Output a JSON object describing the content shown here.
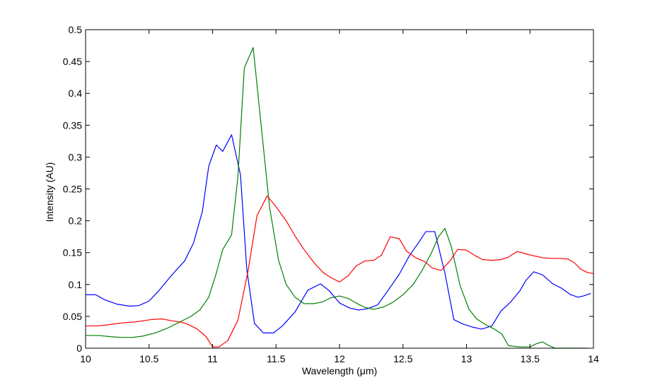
{
  "chart_data": {
    "type": "line",
    "xlabel": "Wavelength (μm)",
    "ylabel": "Intensity (AU)",
    "xlim": [
      10,
      14
    ],
    "ylim": [
      0,
      0.5
    ],
    "xticks": [
      10,
      10.5,
      11,
      11.5,
      12,
      12.5,
      13,
      13.5,
      14
    ],
    "yticks": [
      0,
      0.05,
      0.1,
      0.15,
      0.2,
      0.25,
      0.3,
      0.35,
      0.4,
      0.45,
      0.5
    ],
    "xtick_labels": [
      "10",
      "10.5",
      "11",
      "11.5",
      "12",
      "12.5",
      "13",
      "13.5",
      "14"
    ],
    "ytick_labels": [
      "0",
      "0.05",
      "0.1",
      "0.15",
      "0.2",
      "0.25",
      "0.3",
      "0.35",
      "0.4",
      "0.45",
      "0.5"
    ],
    "grid": false,
    "series": [
      {
        "color": "#0000ff",
        "points": [
          [
            10.0,
            0.084
          ],
          [
            10.08,
            0.084
          ],
          [
            10.15,
            0.076
          ],
          [
            10.25,
            0.069
          ],
          [
            10.35,
            0.066
          ],
          [
            10.42,
            0.067
          ],
          [
            10.5,
            0.074
          ],
          [
            10.58,
            0.091
          ],
          [
            10.65,
            0.108
          ],
          [
            10.72,
            0.124
          ],
          [
            10.78,
            0.137
          ],
          [
            10.85,
            0.165
          ],
          [
            10.92,
            0.215
          ],
          [
            10.97,
            0.286
          ],
          [
            11.03,
            0.319
          ],
          [
            11.08,
            0.309
          ],
          [
            11.15,
            0.335
          ],
          [
            11.22,
            0.272
          ],
          [
            11.27,
            0.123
          ],
          [
            11.33,
            0.039
          ],
          [
            11.4,
            0.024
          ],
          [
            11.48,
            0.024
          ],
          [
            11.55,
            0.035
          ],
          [
            11.65,
            0.057
          ],
          [
            11.75,
            0.091
          ],
          [
            11.85,
            0.101
          ],
          [
            11.92,
            0.09
          ],
          [
            12.0,
            0.071
          ],
          [
            12.08,
            0.063
          ],
          [
            12.15,
            0.06
          ],
          [
            12.22,
            0.062
          ],
          [
            12.3,
            0.068
          ],
          [
            12.38,
            0.09
          ],
          [
            12.47,
            0.116
          ],
          [
            12.55,
            0.145
          ],
          [
            12.62,
            0.165
          ],
          [
            12.68,
            0.183
          ],
          [
            12.75,
            0.183
          ],
          [
            12.83,
            0.118
          ],
          [
            12.9,
            0.045
          ],
          [
            12.97,
            0.038
          ],
          [
            13.05,
            0.033
          ],
          [
            13.12,
            0.03
          ],
          [
            13.2,
            0.035
          ],
          [
            13.27,
            0.058
          ],
          [
            13.35,
            0.073
          ],
          [
            13.42,
            0.09
          ],
          [
            13.47,
            0.107
          ],
          [
            13.53,
            0.12
          ],
          [
            13.6,
            0.115
          ],
          [
            13.68,
            0.101
          ],
          [
            13.75,
            0.094
          ],
          [
            13.82,
            0.084
          ],
          [
            13.88,
            0.08
          ],
          [
            13.92,
            0.082
          ],
          [
            13.98,
            0.086
          ]
        ]
      },
      {
        "color": "#008000",
        "points": [
          [
            10.0,
            0.02
          ],
          [
            10.1,
            0.02
          ],
          [
            10.2,
            0.018
          ],
          [
            10.28,
            0.017
          ],
          [
            10.37,
            0.017
          ],
          [
            10.45,
            0.019
          ],
          [
            10.55,
            0.024
          ],
          [
            10.65,
            0.032
          ],
          [
            10.75,
            0.042
          ],
          [
            10.83,
            0.05
          ],
          [
            10.9,
            0.06
          ],
          [
            10.97,
            0.08
          ],
          [
            11.03,
            0.118
          ],
          [
            11.08,
            0.155
          ],
          [
            11.15,
            0.178
          ],
          [
            11.2,
            0.27
          ],
          [
            11.25,
            0.44
          ],
          [
            11.32,
            0.472
          ],
          [
            11.38,
            0.355
          ],
          [
            11.45,
            0.22
          ],
          [
            11.52,
            0.138
          ],
          [
            11.58,
            0.1
          ],
          [
            11.65,
            0.08
          ],
          [
            11.72,
            0.07
          ],
          [
            11.8,
            0.07
          ],
          [
            11.87,
            0.073
          ],
          [
            11.93,
            0.079
          ],
          [
            12.0,
            0.082
          ],
          [
            12.07,
            0.078
          ],
          [
            12.13,
            0.071
          ],
          [
            12.2,
            0.064
          ],
          [
            12.27,
            0.061
          ],
          [
            12.35,
            0.065
          ],
          [
            12.42,
            0.072
          ],
          [
            12.5,
            0.084
          ],
          [
            12.58,
            0.1
          ],
          [
            12.65,
            0.122
          ],
          [
            12.72,
            0.148
          ],
          [
            12.78,
            0.175
          ],
          [
            12.83,
            0.188
          ],
          [
            12.88,
            0.16
          ],
          [
            12.95,
            0.098
          ],
          [
            13.02,
            0.061
          ],
          [
            13.08,
            0.046
          ],
          [
            13.15,
            0.037
          ],
          [
            13.22,
            0.03
          ],
          [
            13.28,
            0.022
          ],
          [
            13.33,
            0.004
          ],
          [
            13.42,
            0.002
          ],
          [
            13.5,
            0.002
          ],
          [
            13.55,
            0.007
          ],
          [
            13.6,
            0.01
          ],
          [
            13.65,
            0.004
          ],
          [
            13.7,
            0.0
          ],
          [
            13.8,
            0.0
          ],
          [
            13.95,
            0.0
          ]
        ]
      },
      {
        "color": "#ff0000",
        "points": [
          [
            10.0,
            0.035
          ],
          [
            10.08,
            0.035
          ],
          [
            10.15,
            0.036
          ],
          [
            10.22,
            0.038
          ],
          [
            10.3,
            0.04
          ],
          [
            10.38,
            0.041
          ],
          [
            10.45,
            0.043
          ],
          [
            10.52,
            0.045
          ],
          [
            10.6,
            0.046
          ],
          [
            10.68,
            0.043
          ],
          [
            10.75,
            0.041
          ],
          [
            10.8,
            0.038
          ],
          [
            10.88,
            0.03
          ],
          [
            10.95,
            0.018
          ],
          [
            11.0,
            0.002
          ],
          [
            11.05,
            0.002
          ],
          [
            11.12,
            0.012
          ],
          [
            11.2,
            0.044
          ],
          [
            11.28,
            0.122
          ],
          [
            11.35,
            0.208
          ],
          [
            11.43,
            0.239
          ],
          [
            11.5,
            0.222
          ],
          [
            11.58,
            0.2
          ],
          [
            11.65,
            0.176
          ],
          [
            11.72,
            0.155
          ],
          [
            11.8,
            0.134
          ],
          [
            11.87,
            0.119
          ],
          [
            11.93,
            0.111
          ],
          [
            12.0,
            0.104
          ],
          [
            12.07,
            0.114
          ],
          [
            12.13,
            0.129
          ],
          [
            12.2,
            0.137
          ],
          [
            12.27,
            0.138
          ],
          [
            12.33,
            0.146
          ],
          [
            12.4,
            0.175
          ],
          [
            12.47,
            0.172
          ],
          [
            12.53,
            0.152
          ],
          [
            12.6,
            0.142
          ],
          [
            12.67,
            0.136
          ],
          [
            12.73,
            0.126
          ],
          [
            12.8,
            0.122
          ],
          [
            12.87,
            0.137
          ],
          [
            12.93,
            0.155
          ],
          [
            13.0,
            0.154
          ],
          [
            13.07,
            0.145
          ],
          [
            13.13,
            0.139
          ],
          [
            13.2,
            0.138
          ],
          [
            13.27,
            0.139
          ],
          [
            13.33,
            0.143
          ],
          [
            13.4,
            0.152
          ],
          [
            13.47,
            0.148
          ],
          [
            13.53,
            0.145
          ],
          [
            13.6,
            0.142
          ],
          [
            13.67,
            0.141
          ],
          [
            13.73,
            0.141
          ],
          [
            13.8,
            0.14
          ],
          [
            13.85,
            0.134
          ],
          [
            13.9,
            0.124
          ],
          [
            13.95,
            0.119
          ],
          [
            14.0,
            0.117
          ]
        ]
      }
    ]
  }
}
